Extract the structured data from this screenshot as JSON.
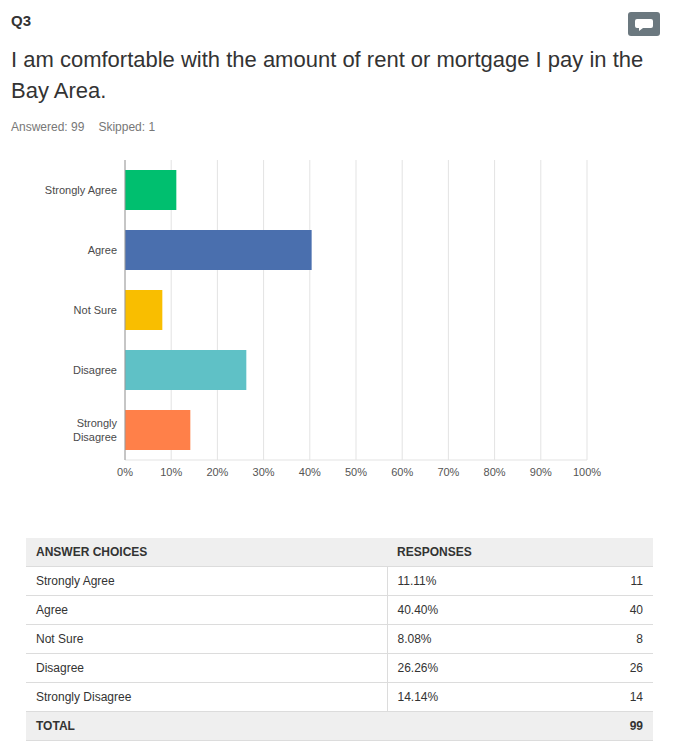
{
  "header": {
    "question_number": "Q3",
    "title": "I am comfortable with the amount of rent or mortgage I pay in the Bay Area.",
    "answered": "Answered: 99",
    "skipped": "Skipped: 1"
  },
  "chart_data": {
    "type": "bar",
    "orientation": "horizontal",
    "categories": [
      "Strongly Agree",
      "Agree",
      "Not Sure",
      "Disagree",
      "Strongly Disagree"
    ],
    "values": [
      11.11,
      40.4,
      8.08,
      26.26,
      14.14
    ],
    "colors": [
      "#00bf6f",
      "#4a6fae",
      "#f9be00",
      "#5fc1c6",
      "#ff8049"
    ],
    "xlim": [
      0,
      100
    ],
    "xticks": [
      {
        "value": 0,
        "label": "0%"
      },
      {
        "value": 10,
        "label": "10%"
      },
      {
        "value": 20,
        "label": "20%"
      },
      {
        "value": 30,
        "label": "30%"
      },
      {
        "value": 40,
        "label": "40%"
      },
      {
        "value": 50,
        "label": "50%"
      },
      {
        "value": 60,
        "label": "60%"
      },
      {
        "value": 70,
        "label": "70%"
      },
      {
        "value": 80,
        "label": "80%"
      },
      {
        "value": 90,
        "label": "90%"
      },
      {
        "value": 100,
        "label": "100%"
      }
    ],
    "grid": true
  },
  "table": {
    "columns": [
      "ANSWER CHOICES",
      "RESPONSES"
    ],
    "rows": [
      [
        "Strongly Agree",
        "11.11%",
        "11"
      ],
      [
        "Agree",
        "40.40%",
        "40"
      ],
      [
        "Not Sure",
        "8.08%",
        "8"
      ],
      [
        "Disagree",
        "26.26%",
        "26"
      ],
      [
        "Strongly Disagree",
        "14.14%",
        "14"
      ]
    ],
    "total": [
      "TOTAL",
      "99"
    ]
  }
}
